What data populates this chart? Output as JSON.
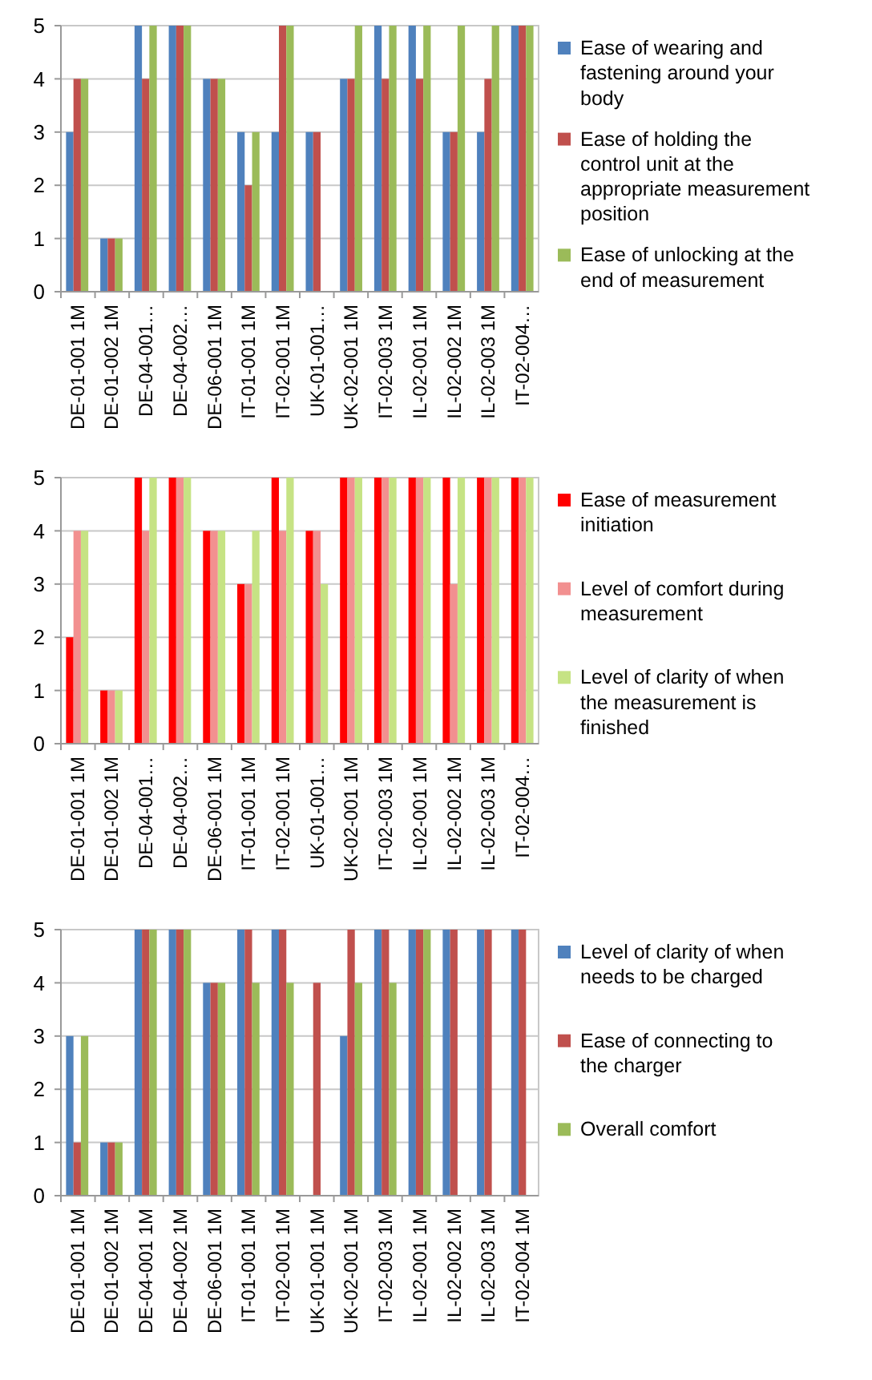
{
  "chart_data": [
    {
      "type": "bar",
      "categories": [
        "DE-01-001 1M",
        "DE-01-002 1M",
        "DE-04-001…",
        "DE-04-002…",
        "DE-06-001 1M",
        "IT-01-001 1M",
        "IT-02-001 1M",
        "UK-01-001…",
        "UK-02-001 1M",
        "IT-02-003 1M",
        "IL-02-001 1M",
        "IL-02-002 1M",
        "IL-02-003 1M",
        "IT-02-004…"
      ],
      "series": [
        {
          "name": "Ease of wearing and fastening around your body",
          "color": "#4f81bd",
          "values": [
            3,
            1,
            5,
            5,
            4,
            3,
            3,
            3,
            4,
            5,
            5,
            3,
            3,
            5
          ]
        },
        {
          "name": "Ease of holding the control unit at the appropriate measurement position",
          "color": "#c0504d",
          "values": [
            4,
            1,
            4,
            5,
            4,
            2,
            5,
            3,
            4,
            4,
            4,
            3,
            4,
            5
          ]
        },
        {
          "name": "Ease of unlocking at the end of measurement",
          "color": "#9bbb59",
          "values": [
            4,
            1,
            5,
            5,
            4,
            3,
            5,
            null,
            5,
            5,
            5,
            5,
            5,
            5
          ]
        }
      ],
      "ylim": [
        0,
        5
      ],
      "yticks": [
        0,
        1,
        2,
        3,
        4,
        5
      ],
      "grid": "y",
      "legend": "right"
    },
    {
      "type": "bar",
      "categories": [
        "DE-01-001 1M",
        "DE-01-002 1M",
        "DE-04-001…",
        "DE-04-002…",
        "DE-06-001 1M",
        "IT-01-001 1M",
        "IT-02-001 1M",
        "UK-01-001…",
        "UK-02-001 1M",
        "IT-02-003 1M",
        "IL-02-001 1M",
        "IL-02-002 1M",
        "IL-02-003 1M",
        "IT-02-004…"
      ],
      "series": [
        {
          "name": "Ease of measurement initiation",
          "color": "#ff0000",
          "values": [
            2,
            1,
            5,
            5,
            4,
            3,
            5,
            4,
            5,
            5,
            5,
            5,
            5,
            5
          ]
        },
        {
          "name": "Level of comfort during measurement",
          "color": "#f29090",
          "values": [
            4,
            1,
            4,
            5,
            4,
            3,
            4,
            4,
            5,
            5,
            5,
            3,
            5,
            5
          ]
        },
        {
          "name": "Level of clarity of when the measurement is finished",
          "color": "#c6e384",
          "values": [
            4,
            1,
            5,
            5,
            4,
            4,
            5,
            3,
            5,
            5,
            5,
            5,
            5,
            5
          ]
        }
      ],
      "ylim": [
        0,
        5
      ],
      "yticks": [
        0,
        1,
        2,
        3,
        4,
        5
      ],
      "grid": "y",
      "legend": "right"
    },
    {
      "type": "bar",
      "categories": [
        "DE-01-001 1M",
        "DE-01-002 1M",
        "DE-04-001 1M",
        "DE-04-002 1M",
        "DE-06-001 1M",
        "IT-01-001 1M",
        "IT-02-001 1M",
        "UK-01-001 1M",
        "UK-02-001 1M",
        "IT-02-003 1M",
        "IL-02-001 1M",
        "IL-02-002 1M",
        "IL-02-003 1M",
        "IT-02-004 1M"
      ],
      "series": [
        {
          "name": "Level of clarity of when needs to be charged",
          "color": "#4f81bd",
          "values": [
            3,
            1,
            5,
            5,
            4,
            5,
            5,
            null,
            3,
            5,
            5,
            5,
            5,
            5
          ]
        },
        {
          "name": "Ease of connecting to the charger",
          "color": "#c0504d",
          "values": [
            1,
            1,
            5,
            5,
            4,
            5,
            5,
            4,
            5,
            5,
            5,
            5,
            5,
            5
          ]
        },
        {
          "name": "Overall comfort",
          "color": "#9bbb59",
          "values": [
            3,
            1,
            5,
            5,
            4,
            4,
            4,
            null,
            4,
            4,
            5,
            null,
            null,
            null
          ]
        }
      ],
      "ylim": [
        0,
        5
      ],
      "yticks": [
        0,
        1,
        2,
        3,
        4,
        5
      ],
      "grid": "y",
      "legend": "right"
    }
  ]
}
